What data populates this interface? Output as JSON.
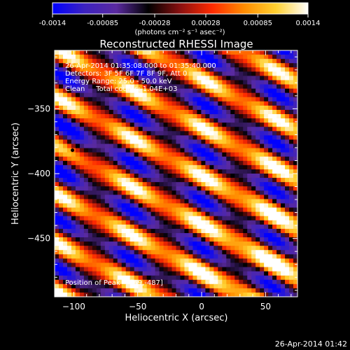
{
  "colorbar": {
    "ticks": [
      "-0.0014",
      "-0.00085",
      "-0.00028",
      "0.00028",
      "0.00085",
      "0.0014"
    ],
    "range": [
      -0.0014,
      0.0014
    ],
    "units": "(photons cm⁻² s⁻¹ asec⁻²)",
    "colors": [
      "#0000ff",
      "#3c22c0",
      "#5a2aa0",
      "#000000",
      "#8a1010",
      "#ff2a00",
      "#ff8c00",
      "#ffd030",
      "#ffffff"
    ]
  },
  "chart_data": {
    "type": "heatmap",
    "title": "Reconstructed RHESSI Image",
    "xlabel": "Heliocentric X (arcsec)",
    "ylabel": "Heliocentric Y (arcsec)",
    "xlim": [
      -115,
      75
    ],
    "ylim": [
      -495,
      -305
    ],
    "x_ticks": [
      -100,
      -50,
      0,
      50
    ],
    "y_ticks": [
      -350,
      -400,
      -450
    ],
    "annotations": [
      "26-Apr-2014 01:35:08.000 to 01:35:40.000",
      "Detectors: 3F 5F 6F 7F 8F 9F, Att 0",
      "Energy Range: 25.0 - 50.0 keV",
      "Clean     Total counts: 1.04E+03"
    ],
    "peak_label": "Position of Peak = [69,-487]",
    "minimum_marker": {
      "x": -101,
      "y": -382
    },
    "peak": {
      "x": 69,
      "y": -487
    },
    "stripe_angle_deg": -28,
    "stripe_period_arcsec": 33
  },
  "footer": {
    "timestamp": "26-Apr-2014 01:42"
  }
}
